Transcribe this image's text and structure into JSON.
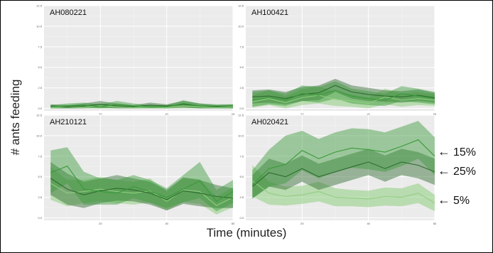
{
  "chart_data": {
    "type": "line",
    "xlabel": "Time (minutes)",
    "ylabel": "# ants feeding",
    "x_ticks": [
      20,
      40,
      60
    ],
    "y_ticks": [
      0.0,
      2.5,
      5.0,
      7.5,
      10.0,
      12.5
    ],
    "x_tick_labels": [
      "20",
      "40",
      "60"
    ],
    "y_tick_labels": [
      "0.0",
      "2.5",
      "5.0",
      "7.5",
      "10.0",
      "12.5"
    ],
    "xlim": [
      3,
      60
    ],
    "ylim": [
      -0.3,
      12.5
    ],
    "grid": true,
    "x": [
      5,
      10,
      15,
      20,
      25,
      30,
      35,
      40,
      45,
      50,
      55,
      60
    ],
    "colors": {
      "15%": "#3a9a3a",
      "25%": "#2e6b2e",
      "5%": "#8fce7f"
    },
    "panels": [
      {
        "title": "AH080221",
        "series": [
          {
            "key": "15%",
            "mean": [
              0.2,
              0.3,
              0.4,
              0.2,
              0.5,
              0.3,
              0.2,
              0.2,
              0.6,
              0.3,
              0.3,
              0.3
            ],
            "lower": [
              0.0,
              0.0,
              0.1,
              0.0,
              0.1,
              0.0,
              0.0,
              0.0,
              0.2,
              0.0,
              0.0,
              0.0
            ],
            "upper": [
              0.4,
              0.6,
              0.7,
              0.5,
              0.9,
              0.6,
              0.4,
              0.4,
              1.0,
              0.6,
              0.5,
              0.5
            ]
          },
          {
            "key": "25%",
            "mean": [
              0.3,
              0.2,
              0.3,
              0.5,
              0.3,
              0.2,
              0.4,
              0.3,
              0.5,
              0.3,
              0.2,
              0.3
            ],
            "lower": [
              0.0,
              0.0,
              0.0,
              0.1,
              0.0,
              0.0,
              0.1,
              0.0,
              0.1,
              0.0,
              0.0,
              0.0
            ],
            "upper": [
              0.5,
              0.4,
              0.6,
              0.9,
              0.6,
              0.4,
              0.7,
              0.5,
              0.9,
              0.6,
              0.4,
              0.5
            ]
          },
          {
            "key": "5%",
            "mean": [
              0.1,
              0.2,
              0.1,
              0.3,
              0.2,
              0.1,
              0.2,
              0.1,
              0.3,
              0.2,
              0.1,
              0.2
            ],
            "lower": [
              0.0,
              0.0,
              0.0,
              0.0,
              0.0,
              0.0,
              0.0,
              0.0,
              0.0,
              0.0,
              0.0,
              0.0
            ],
            "upper": [
              0.3,
              0.4,
              0.3,
              0.5,
              0.4,
              0.3,
              0.4,
              0.3,
              0.5,
              0.4,
              0.3,
              0.4
            ]
          }
        ]
      },
      {
        "title": "AH100421",
        "series": [
          {
            "key": "15%",
            "mean": [
              1.0,
              1.3,
              1.0,
              1.8,
              1.6,
              2.2,
              1.5,
              1.2,
              1.0,
              1.8,
              1.5,
              1.2
            ],
            "lower": [
              0.2,
              0.5,
              0.3,
              0.9,
              0.7,
              1.2,
              0.6,
              0.4,
              0.3,
              0.9,
              0.7,
              0.5
            ],
            "upper": [
              2.0,
              2.2,
              1.8,
              2.8,
              2.6,
              3.3,
              2.4,
              2.1,
              1.8,
              2.7,
              2.4,
              2.0
            ]
          },
          {
            "key": "25%",
            "mean": [
              1.4,
              1.5,
              1.2,
              1.7,
              1.9,
              2.8,
              2.0,
              1.7,
              1.5,
              1.4,
              1.6,
              1.3
            ],
            "lower": [
              0.6,
              0.7,
              0.5,
              0.9,
              1.0,
              2.0,
              1.2,
              0.9,
              0.8,
              0.7,
              0.9,
              0.7
            ],
            "upper": [
              2.2,
              2.3,
              2.0,
              2.6,
              2.8,
              3.6,
              2.8,
              2.5,
              2.2,
              2.1,
              2.3,
              1.9
            ]
          },
          {
            "key": "5%",
            "mean": [
              0.8,
              1.2,
              0.7,
              1.3,
              1.6,
              1.1,
              0.9,
              0.6,
              1.4,
              1.0,
              1.2,
              1.0
            ],
            "lower": [
              0.1,
              0.4,
              0.0,
              0.4,
              0.6,
              0.3,
              0.2,
              0.0,
              0.5,
              0.2,
              0.4,
              0.3
            ],
            "upper": [
              1.6,
              2.2,
              1.5,
              2.3,
              2.7,
              2.0,
              1.7,
              1.3,
              2.4,
              1.8,
              2.0,
              1.7
            ]
          }
        ]
      },
      {
        "title": "AH210121",
        "series": [
          {
            "key": "15%",
            "mean": [
              5.5,
              6.3,
              3.5,
              3.2,
              3.0,
              3.8,
              3.2,
              2.5,
              3.5,
              4.5,
              2.0,
              3.2
            ],
            "lower": [
              3.0,
              4.2,
              1.6,
              1.6,
              1.6,
              2.4,
              1.8,
              1.2,
              1.9,
              2.4,
              0.8,
              1.8
            ],
            "upper": [
              8.2,
              8.6,
              5.6,
              4.8,
              4.6,
              5.2,
              4.6,
              3.6,
              5.2,
              6.8,
              3.4,
              4.6
            ]
          },
          {
            "key": "25%",
            "mean": [
              4.8,
              3.5,
              2.8,
              3.3,
              3.6,
              3.4,
              3.0,
              2.2,
              3.3,
              3.0,
              2.6,
              2.4
            ],
            "lower": [
              2.8,
              1.6,
              1.2,
              1.8,
              2.1,
              2.0,
              1.6,
              0.9,
              1.7,
              1.4,
              1.2,
              1.2
            ],
            "upper": [
              6.8,
              5.4,
              4.4,
              4.8,
              5.2,
              4.8,
              4.4,
              3.4,
              4.9,
              4.6,
              4.0,
              3.6
            ]
          },
          {
            "key": "5%",
            "mean": [
              4.2,
              3.0,
              3.2,
              3.5,
              3.2,
              3.0,
              3.3,
              2.0,
              3.4,
              3.2,
              1.5,
              2.5
            ],
            "lower": [
              2.2,
              1.4,
              1.8,
              2.0,
              1.8,
              1.6,
              1.9,
              0.9,
              1.9,
              1.7,
              0.4,
              1.3
            ],
            "upper": [
              6.2,
              4.6,
              4.6,
              5.0,
              4.6,
              4.4,
              4.8,
              3.2,
              4.9,
              4.7,
              2.6,
              3.7
            ]
          }
        ]
      },
      {
        "title": "AH020421",
        "series": [
          {
            "key": "15%",
            "mean": [
              4.0,
              6.0,
              6.5,
              8.2,
              7.2,
              8.0,
              8.5,
              8.3,
              8.0,
              8.7,
              9.5,
              7.5
            ],
            "lower": [
              2.3,
              3.8,
              4.2,
              5.8,
              4.8,
              5.6,
              6.1,
              5.9,
              5.6,
              6.3,
              7.2,
              5.2
            ],
            "upper": [
              5.8,
              8.3,
              10.0,
              10.6,
              9.6,
              10.4,
              10.9,
              10.8,
              10.4,
              11.1,
              11.8,
              9.8
            ]
          },
          {
            "key": "25%",
            "mean": [
              3.8,
              5.5,
              5.0,
              6.0,
              5.0,
              5.6,
              6.2,
              6.8,
              6.0,
              6.8,
              6.4,
              5.6
            ],
            "lower": [
              2.4,
              3.8,
              3.4,
              4.4,
              3.4,
              4.0,
              4.6,
              5.2,
              4.4,
              5.2,
              4.8,
              4.0
            ],
            "upper": [
              5.2,
              7.2,
              6.6,
              7.6,
              6.6,
              7.2,
              7.8,
              8.4,
              7.6,
              8.4,
              8.0,
              7.2
            ]
          },
          {
            "key": "5%",
            "mean": [
              4.5,
              3.0,
              2.6,
              2.8,
              3.2,
              2.5,
              2.4,
              2.3,
              2.6,
              2.5,
              3.0,
              1.8
            ],
            "lower": [
              2.6,
              1.6,
              1.5,
              1.7,
              2.0,
              1.4,
              1.4,
              1.3,
              1.5,
              1.4,
              1.8,
              0.8
            ],
            "upper": [
              6.4,
              4.4,
              3.8,
              3.9,
              4.4,
              3.6,
              3.4,
              3.3,
              3.7,
              3.6,
              4.2,
              2.8
            ]
          }
        ]
      }
    ],
    "annotations": [
      {
        "label": "15%",
        "arrow": "←"
      },
      {
        "label": "25%",
        "arrow": "←"
      },
      {
        "label": "5%",
        "arrow": "←"
      }
    ]
  }
}
